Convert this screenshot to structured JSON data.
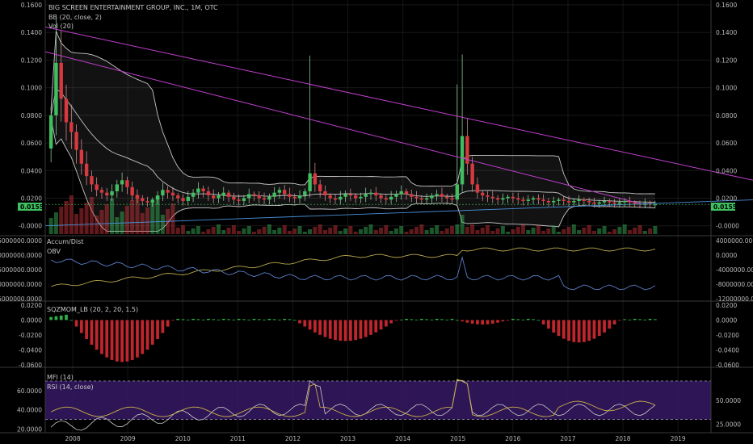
{
  "header": {
    "title": "BIG SCREEN ENTERTAINMENT GROUP, INC., 1M, OTC",
    "bb": "BB (20, close, 2)",
    "vol": "Vol (20)"
  },
  "price_tag": "0.0155",
  "colors": {
    "up": "#3fbf5f",
    "down": "#d8383f",
    "bb": "#e6e6e6",
    "trend": "#c23fcf",
    "accum": "#b7a64a",
    "obv": "#5b7fc7",
    "rsi": "#c7b04a",
    "mfi": "#c9c9c9",
    "band": "#3a1a6a"
  },
  "chart_data": [
    {
      "panel": "price",
      "type": "candlestick",
      "title": "BIG SCREEN ENTERTAINMENT GROUP, INC., 1M, OTC",
      "ylim": [
        -0.006,
        0.16
      ],
      "y_ticks": [
        "0.1600",
        "0.1400",
        "0.1200",
        "0.1000",
        "0.0800",
        "0.0600",
        "0.0400",
        "0.0200",
        "-0.0000"
      ],
      "y_tick_values": [
        0.16,
        0.14,
        0.12,
        0.1,
        0.08,
        0.06,
        0.04,
        0.02,
        0.0
      ],
      "x_ticks": [
        "2008",
        "2009",
        "2010",
        "2011",
        "2012",
        "2013",
        "2014",
        "2015",
        "2016",
        "2017",
        "2018",
        "2019"
      ],
      "last": 0.0155,
      "close_series": [
        0.08,
        0.118,
        0.092,
        0.075,
        0.068,
        0.055,
        0.045,
        0.036,
        0.03,
        0.026,
        0.024,
        0.022,
        0.025,
        0.03,
        0.033,
        0.028,
        0.022,
        0.02,
        0.018,
        0.017,
        0.019,
        0.022,
        0.026,
        0.024,
        0.022,
        0.02,
        0.018,
        0.021,
        0.024,
        0.027,
        0.025,
        0.022,
        0.02,
        0.022,
        0.024,
        0.021,
        0.019,
        0.018,
        0.02,
        0.023,
        0.022,
        0.02,
        0.019,
        0.021,
        0.024,
        0.026,
        0.023,
        0.021,
        0.02,
        0.022,
        0.025,
        0.038,
        0.03,
        0.025,
        0.022,
        0.02,
        0.019,
        0.021,
        0.023,
        0.022,
        0.02,
        0.021,
        0.023,
        0.024,
        0.022,
        0.02,
        0.019,
        0.021,
        0.023,
        0.025,
        0.023,
        0.021,
        0.02,
        0.019,
        0.02,
        0.022,
        0.023,
        0.021,
        0.02,
        0.019,
        0.03,
        0.065,
        0.045,
        0.03,
        0.024,
        0.022,
        0.021,
        0.02,
        0.019,
        0.02,
        0.021,
        0.02,
        0.019,
        0.018,
        0.019,
        0.02,
        0.019,
        0.018,
        0.017,
        0.018,
        0.019,
        0.018,
        0.017,
        0.018,
        0.019,
        0.018,
        0.017,
        0.016,
        0.017,
        0.018,
        0.017,
        0.016,
        0.017,
        0.018,
        0.017,
        0.016,
        0.0155,
        0.0165,
        0.0155,
        0.0155
      ]
    },
    {
      "panel": "accum_obv",
      "type": "line",
      "series_labels": [
        "Accum/Dist",
        "OBV"
      ],
      "y_ticks_left": [
        "-15000000.0000",
        "-20000000.0000",
        "-25000000.0000",
        "-30000000.0000",
        "-35000000.0000"
      ],
      "y_ticks_right": [
        "4000000.0000",
        "0.0000",
        "-4000000.0000",
        "-8000000.0000",
        "-12000000.0000"
      ]
    },
    {
      "panel": "sqzmom",
      "type": "bar",
      "label": "SQZMOM_LB (20, 2, 20, 1.5)",
      "y_ticks": [
        "0.0200",
        "0.0000",
        "-0.0200",
        "-0.0400",
        "-0.0600"
      ],
      "y_tick_values": [
        0.02,
        0.0,
        -0.02,
        -0.04,
        -0.06
      ],
      "ylim": [
        -0.062,
        0.022
      ]
    },
    {
      "panel": "rsi_mfi",
      "type": "line",
      "series_labels": [
        "MFI (14)",
        "RSI (14, close)"
      ],
      "y_ticks_left": [
        "60.0000",
        "40.0000",
        "20.0000"
      ],
      "y_ticks_right": [
        "50.0000",
        "25.0000"
      ],
      "left_range": [
        18,
        80
      ],
      "right_range": [
        20,
        80
      ]
    }
  ]
}
